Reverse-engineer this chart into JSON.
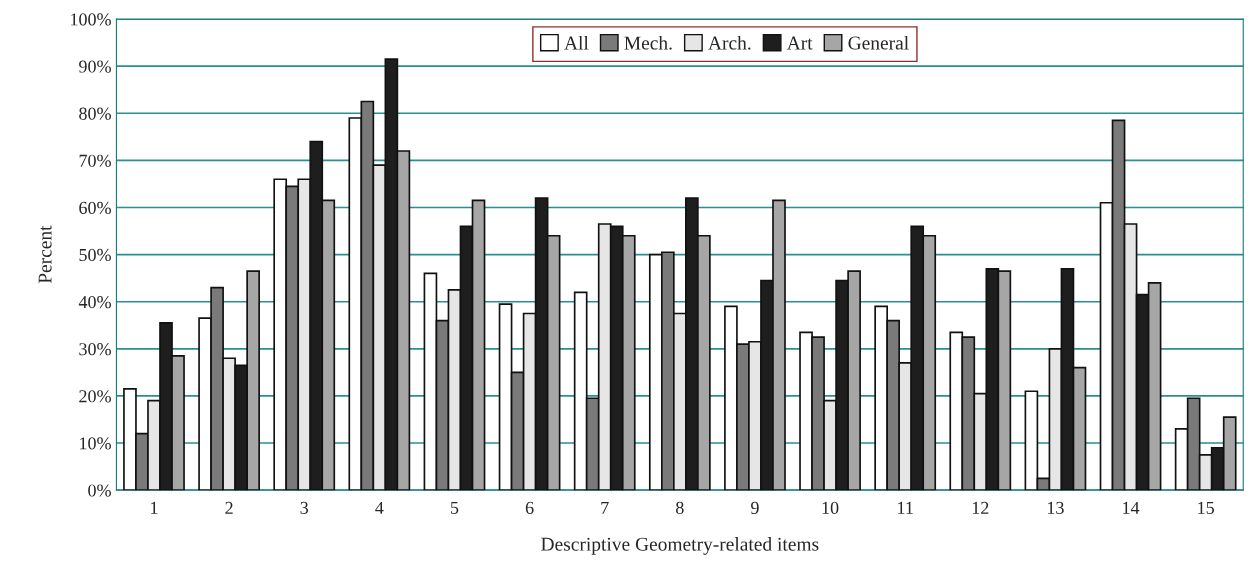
{
  "chart_data": {
    "type": "bar",
    "xlabel": "Descriptive Geometry-related items",
    "ylabel": "Percent",
    "categories": [
      "1",
      "2",
      "3",
      "4",
      "5",
      "6",
      "7",
      "8",
      "9",
      "10",
      "11",
      "12",
      "13",
      "14",
      "15"
    ],
    "series": [
      {
        "name": "All",
        "color": "#ffffff",
        "values": [
          21.5,
          36.5,
          66,
          79,
          46,
          39.5,
          42,
          50,
          39,
          33.5,
          39,
          33.5,
          21,
          61,
          13
        ]
      },
      {
        "name": "Mech.",
        "color": "#7a7a7a",
        "values": [
          12,
          43,
          64.5,
          82.5,
          36,
          25,
          19.5,
          50.5,
          31,
          32.5,
          36,
          32.5,
          2.5,
          78.5,
          19.5
        ]
      },
      {
        "name": "Arch.",
        "color": "#e6e6e6",
        "values": [
          19,
          28,
          66,
          69,
          42.5,
          37.5,
          56.5,
          37.5,
          31.5,
          19,
          27,
          20.5,
          30,
          56.5,
          7.5
        ]
      },
      {
        "name": "Art",
        "color": "#1e1e1e",
        "values": [
          35.5,
          26.5,
          74,
          91.5,
          56,
          62,
          56,
          62,
          44.5,
          44.5,
          56,
          47,
          47,
          41.5,
          9
        ]
      },
      {
        "name": "General",
        "color": "#a6a6a6",
        "values": [
          28.5,
          46.5,
          61.5,
          72,
          61.5,
          54,
          54,
          54,
          61.5,
          46.5,
          54,
          46.5,
          26,
          44,
          15.5
        ]
      }
    ],
    "ylim": [
      0,
      100
    ],
    "yticks": [
      {
        "value": 0,
        "label": "0%"
      },
      {
        "value": 10,
        "label": "10%"
      },
      {
        "value": 20,
        "label": "20%"
      },
      {
        "value": 30,
        "label": "30%"
      },
      {
        "value": 40,
        "label": "40%"
      },
      {
        "value": 50,
        "label": "50%"
      },
      {
        "value": 60,
        "label": "60%"
      },
      {
        "value": 70,
        "label": "70%"
      },
      {
        "value": 80,
        "label": "80%"
      },
      {
        "value": 90,
        "label": "90%"
      },
      {
        "value": 100,
        "label": "100%"
      }
    ],
    "grid": "y",
    "legend": "top"
  }
}
